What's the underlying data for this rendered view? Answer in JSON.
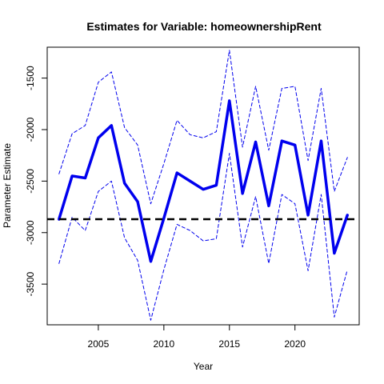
{
  "chart_data": {
    "type": "line",
    "title": "Estimates for Variable: homeownershipRent",
    "xlabel": "Year",
    "ylabel": "Parameter Estimate",
    "xlim": [
      2001.1,
      2024.9
    ],
    "ylim": [
      -3895,
      -1200
    ],
    "x_ticks": [
      2005,
      2010,
      2015,
      2020
    ],
    "y_ticks": [
      -3500,
      -3000,
      -2500,
      -2000,
      -1500
    ],
    "reference_line": {
      "y": -2870,
      "style": "dashed",
      "color": "#000000"
    },
    "series": [
      {
        "role": "estimate",
        "color": "#0000ee",
        "style": "solid",
        "x": [
          2002,
          2003,
          2004,
          2005,
          2006,
          2007,
          2008,
          2009,
          2010,
          2011,
          2012,
          2013,
          2014,
          2015,
          2016,
          2017,
          2018,
          2019,
          2020,
          2021,
          2022,
          2023,
          2024
        ],
        "y": [
          -2870,
          -2450,
          -2470,
          -2080,
          -1960,
          -2520,
          -2700,
          -3280,
          -2860,
          -2420,
          -2500,
          -2580,
          -2540,
          -1720,
          -2620,
          -2120,
          -2740,
          -2110,
          -2150,
          -2830,
          -2110,
          -3200,
          -2830
        ]
      },
      {
        "role": "upper",
        "color": "#0000ee",
        "style": "dashed",
        "x": [
          2002,
          2003,
          2004,
          2005,
          2006,
          2007,
          2008,
          2009,
          2010,
          2011,
          2012,
          2013,
          2014,
          2015,
          2016,
          2017,
          2018,
          2019,
          2020,
          2021,
          2022,
          2023,
          2024
        ],
        "y": [
          -2430,
          -2040,
          -1960,
          -1540,
          -1440,
          -1980,
          -2150,
          -2720,
          -2330,
          -1910,
          -2050,
          -2080,
          -2020,
          -1230,
          -2170,
          -1580,
          -2200,
          -1600,
          -1580,
          -2300,
          -1600,
          -2600,
          -2270
        ]
      },
      {
        "role": "lower",
        "color": "#0000ee",
        "style": "dashed",
        "x": [
          2002,
          2003,
          2004,
          2005,
          2006,
          2007,
          2008,
          2009,
          2010,
          2011,
          2012,
          2013,
          2014,
          2015,
          2016,
          2017,
          2018,
          2019,
          2020,
          2021,
          2022,
          2023,
          2024
        ],
        "y": [
          -3300,
          -2850,
          -2980,
          -2600,
          -2500,
          -3050,
          -3270,
          -3850,
          -3360,
          -2920,
          -2980,
          -3080,
          -3060,
          -2230,
          -3140,
          -2650,
          -3300,
          -2630,
          -2720,
          -3370,
          -2630,
          -3820,
          -3360
        ]
      }
    ],
    "grid": false,
    "legend": "none"
  }
}
